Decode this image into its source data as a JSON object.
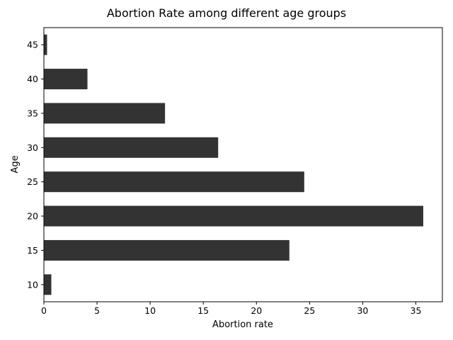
{
  "chart_data": {
    "type": "bar",
    "orientation": "horizontal",
    "title": "Abortion Rate among different age groups",
    "xlabel": "Abortion rate",
    "ylabel": "Age",
    "categories": [
      "10",
      "15",
      "20",
      "25",
      "30",
      "35",
      "40",
      "45"
    ],
    "values": [
      0.7,
      23.1,
      35.7,
      24.5,
      16.4,
      11.4,
      4.1,
      0.3
    ],
    "xlim": [
      0,
      37.5
    ],
    "xticks": [
      "0",
      "5",
      "10",
      "15",
      "20",
      "25",
      "30",
      "35"
    ],
    "grid": false,
    "legend": "none",
    "bar_color": "#333333"
  }
}
